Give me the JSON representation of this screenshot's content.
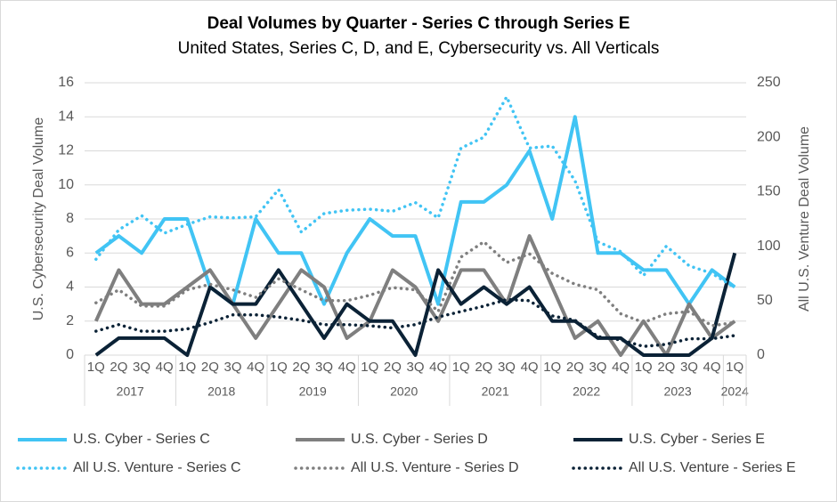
{
  "chart_data": {
    "type": "line",
    "title": "Deal Volumes by Quarter - Series C through Series E",
    "subtitle": "United States, Series C, D, and E, Cybersecurity vs. All Verticals",
    "y_label": "U.S. Cybersecurity Deal Volume",
    "y2_label": "All U.S. Venture Deal Volume",
    "year_groups": [
      {
        "label": "2017",
        "quarters": [
          "1Q",
          "2Q",
          "3Q",
          "4Q"
        ]
      },
      {
        "label": "2018",
        "quarters": [
          "1Q",
          "2Q",
          "3Q",
          "4Q"
        ]
      },
      {
        "label": "2019",
        "quarters": [
          "1Q",
          "2Q",
          "3Q",
          "4Q"
        ]
      },
      {
        "label": "2020",
        "quarters": [
          "1Q",
          "2Q",
          "3Q",
          "4Q"
        ]
      },
      {
        "label": "2021",
        "quarters": [
          "1Q",
          "2Q",
          "3Q",
          "4Q"
        ]
      },
      {
        "label": "2022",
        "quarters": [
          "1Q",
          "2Q",
          "3Q",
          "4Q"
        ]
      },
      {
        "label": "2023",
        "quarters": [
          "1Q",
          "2Q",
          "3Q",
          "4Q"
        ]
      },
      {
        "label": "2024",
        "quarters": [
          "1Q"
        ]
      }
    ],
    "ylim": [
      0,
      16
    ],
    "yticks": [
      0,
      2,
      4,
      6,
      8,
      10,
      12,
      14,
      16
    ],
    "y2lim": [
      0,
      250
    ],
    "y2ticks": [
      0,
      50,
      100,
      150,
      200,
      250
    ],
    "grid": true,
    "legend": "bottom",
    "series": [
      {
        "name": "U.S. Cyber - Series C",
        "color": "#41c4f4",
        "style": "solid",
        "axis": "y",
        "values": [
          6,
          7,
          6,
          8,
          8,
          4,
          3,
          8,
          6,
          6,
          3,
          6,
          8,
          7,
          7,
          3,
          9,
          9,
          10,
          12,
          8,
          14,
          6,
          6,
          5,
          5,
          3,
          5,
          4
        ]
      },
      {
        "name": "U.S. Cyber - Series D",
        "color": "#7f7f7f",
        "style": "solid",
        "axis": "y",
        "values": [
          2,
          5,
          3,
          3,
          4,
          5,
          3,
          1,
          3,
          5,
          4,
          1,
          2,
          5,
          4,
          2,
          5,
          5,
          3,
          7,
          4,
          1,
          2,
          0,
          2,
          0,
          3,
          1,
          2
        ]
      },
      {
        "name": "U.S. Cyber - Series E",
        "color": "#0b2236",
        "style": "solid",
        "axis": "y",
        "values": [
          0,
          1,
          1,
          1,
          0,
          4,
          3,
          3,
          5,
          3,
          1,
          3,
          2,
          2,
          0,
          5,
          3,
          4,
          3,
          4,
          2,
          2,
          1,
          1,
          0,
          0,
          0,
          1,
          6
        ]
      },
      {
        "name": "All U.S. Venture - Series C",
        "color": "#41c4f4",
        "style": "dotted",
        "axis": "y2",
        "values": [
          88,
          115,
          128,
          112,
          120,
          127,
          126,
          127,
          152,
          113,
          130,
          133,
          134,
          132,
          140,
          126,
          190,
          200,
          237,
          190,
          192,
          160,
          104,
          95,
          73,
          100,
          82,
          75,
          62
        ]
      },
      {
        "name": "All U.S. Venture - Series D",
        "color": "#7f7f7f",
        "style": "dotted",
        "axis": "y2",
        "values": [
          48,
          60,
          45,
          45,
          60,
          65,
          60,
          53,
          70,
          60,
          50,
          50,
          55,
          62,
          60,
          40,
          90,
          104,
          85,
          93,
          75,
          65,
          60,
          38,
          30,
          38,
          40,
          27,
          30
        ]
      },
      {
        "name": "All U.S. Venture - Series E",
        "color": "#0b2236",
        "style": "dotted",
        "axis": "y2",
        "values": [
          22,
          28,
          22,
          22,
          24,
          30,
          37,
          37,
          35,
          32,
          28,
          28,
          27,
          25,
          28,
          35,
          40,
          45,
          51,
          50,
          36,
          32,
          17,
          14,
          8,
          10,
          15,
          15,
          18
        ]
      }
    ]
  }
}
